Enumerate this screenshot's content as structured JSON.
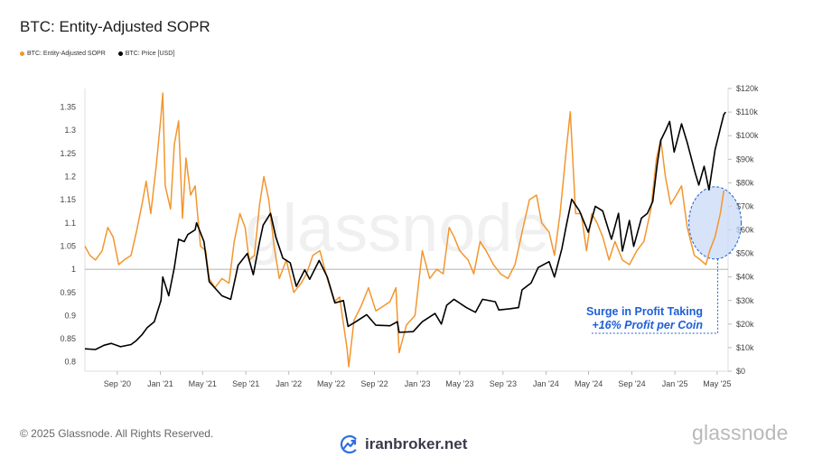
{
  "title": "BTC: Entity-Adjusted SOPR",
  "colors": {
    "sopr": "#f3962e",
    "price": "#000000",
    "annotation": "#1d5fd6",
    "highlight_fill": "#c9d9f5"
  },
  "footer": {
    "copyright": "© 2025 Glassnode. All Rights Reserved.",
    "brand": "glassnode",
    "logo_text": "iranbroker.net",
    "logo_icon": "trend-arrow-icon"
  },
  "watermark": "glassnode",
  "annotation": {
    "line1": "Surge in Profit Taking",
    "line2": "+16% Profit per Coin"
  },
  "chart_data": {
    "type": "line",
    "title": "BTC: Entity-Adjusted SOPR",
    "x_ticks": [
      "Sep '20",
      "Jan '21",
      "May '21",
      "Sep '21",
      "Jan '22",
      "May '22",
      "Sep '22",
      "Jan '23",
      "May '23",
      "Sep '23",
      "Jan '24",
      "May '24",
      "Sep '24",
      "Jan '25",
      "May '25"
    ],
    "x_range": [
      "2020-06-01",
      "2025-06-01"
    ],
    "y_left": {
      "ticks": [
        "0.8",
        "0.85",
        "0.9",
        "0.95",
        "1",
        "1.05",
        "1.1",
        "1.15",
        "1.2",
        "1.25",
        "1.3",
        "1.35"
      ],
      "range": [
        0.78,
        1.39
      ],
      "reference": 1
    },
    "y_right": {
      "ticks": [
        "$0",
        "$10k",
        "$20k",
        "$30k",
        "$40k",
        "$50k",
        "$60k",
        "$70k",
        "$80k",
        "$90k",
        "$100k",
        "$110k",
        "$120k"
      ],
      "range": [
        0,
        120000
      ]
    },
    "legend_position": "top-left",
    "series": [
      {
        "name": "BTC: Entity-Adjusted SOPR",
        "axis": "left",
        "points": [
          [
            "2020-06-01",
            1.05
          ],
          [
            "2020-06-15",
            1.03
          ],
          [
            "2020-07-01",
            1.02
          ],
          [
            "2020-07-20",
            1.04
          ],
          [
            "2020-08-05",
            1.09
          ],
          [
            "2020-08-20",
            1.07
          ],
          [
            "2020-09-05",
            1.01
          ],
          [
            "2020-09-20",
            1.02
          ],
          [
            "2020-10-10",
            1.03
          ],
          [
            "2020-10-25",
            1.08
          ],
          [
            "2020-11-10",
            1.14
          ],
          [
            "2020-11-22",
            1.19
          ],
          [
            "2020-12-05",
            1.12
          ],
          [
            "2020-12-20",
            1.22
          ],
          [
            "2021-01-03",
            1.33
          ],
          [
            "2021-01-08",
            1.38
          ],
          [
            "2021-01-15",
            1.18
          ],
          [
            "2021-01-30",
            1.13
          ],
          [
            "2021-02-10",
            1.27
          ],
          [
            "2021-02-22",
            1.32
          ],
          [
            "2021-03-05",
            1.11
          ],
          [
            "2021-03-15",
            1.24
          ],
          [
            "2021-03-28",
            1.16
          ],
          [
            "2021-04-10",
            1.18
          ],
          [
            "2021-04-25",
            1.05
          ],
          [
            "2021-05-10",
            1.04
          ],
          [
            "2021-05-20",
            0.98
          ],
          [
            "2021-06-05",
            0.96
          ],
          [
            "2021-06-25",
            0.98
          ],
          [
            "2021-07-15",
            0.97
          ],
          [
            "2021-07-30",
            1.06
          ],
          [
            "2021-08-15",
            1.12
          ],
          [
            "2021-08-30",
            1.09
          ],
          [
            "2021-09-10",
            1.02
          ],
          [
            "2021-09-25",
            1.03
          ],
          [
            "2021-10-10",
            1.14
          ],
          [
            "2021-10-22",
            1.2
          ],
          [
            "2021-11-05",
            1.15
          ],
          [
            "2021-11-20",
            1.05
          ],
          [
            "2021-12-05",
            0.98
          ],
          [
            "2021-12-25",
            1.02
          ],
          [
            "2022-01-15",
            0.95
          ],
          [
            "2022-02-05",
            0.97
          ],
          [
            "2022-02-20",
            0.99
          ],
          [
            "2022-03-10",
            1.03
          ],
          [
            "2022-03-30",
            1.04
          ],
          [
            "2022-04-20",
            0.98
          ],
          [
            "2022-05-10",
            0.93
          ],
          [
            "2022-05-25",
            0.94
          ],
          [
            "2022-06-15",
            0.83
          ],
          [
            "2022-06-20",
            0.79
          ],
          [
            "2022-07-05",
            0.89
          ],
          [
            "2022-07-25",
            0.92
          ],
          [
            "2022-08-15",
            0.96
          ],
          [
            "2022-09-05",
            0.91
          ],
          [
            "2022-09-25",
            0.92
          ],
          [
            "2022-10-15",
            0.93
          ],
          [
            "2022-11-01",
            0.96
          ],
          [
            "2022-11-10",
            0.82
          ],
          [
            "2022-12-01",
            0.88
          ],
          [
            "2022-12-25",
            0.9
          ],
          [
            "2023-01-15",
            1.04
          ],
          [
            "2023-02-05",
            0.98
          ],
          [
            "2023-02-25",
            1.0
          ],
          [
            "2023-03-15",
            0.99
          ],
          [
            "2023-04-01",
            1.09
          ],
          [
            "2023-04-15",
            1.07
          ],
          [
            "2023-05-01",
            1.04
          ],
          [
            "2023-05-25",
            1.02
          ],
          [
            "2023-06-10",
            0.99
          ],
          [
            "2023-06-28",
            1.06
          ],
          [
            "2023-07-15",
            1.04
          ],
          [
            "2023-08-05",
            1.01
          ],
          [
            "2023-08-25",
            0.99
          ],
          [
            "2023-09-15",
            0.98
          ],
          [
            "2023-10-05",
            1.01
          ],
          [
            "2023-10-28",
            1.09
          ],
          [
            "2023-11-15",
            1.15
          ],
          [
            "2023-12-05",
            1.16
          ],
          [
            "2023-12-20",
            1.1
          ],
          [
            "2024-01-10",
            1.08
          ],
          [
            "2024-01-25",
            1.03
          ],
          [
            "2024-02-10",
            1.12
          ],
          [
            "2024-02-28",
            1.26
          ],
          [
            "2024-03-10",
            1.34
          ],
          [
            "2024-03-25",
            1.12
          ],
          [
            "2024-04-10",
            1.12
          ],
          [
            "2024-04-25",
            1.04
          ],
          [
            "2024-05-10",
            1.12
          ],
          [
            "2024-05-25",
            1.1
          ],
          [
            "2024-06-10",
            1.07
          ],
          [
            "2024-06-28",
            1.02
          ],
          [
            "2024-07-15",
            1.06
          ],
          [
            "2024-08-05",
            1.02
          ],
          [
            "2024-08-25",
            1.01
          ],
          [
            "2024-09-15",
            1.04
          ],
          [
            "2024-10-05",
            1.06
          ],
          [
            "2024-10-25",
            1.13
          ],
          [
            "2024-11-10",
            1.24
          ],
          [
            "2024-11-22",
            1.28
          ],
          [
            "2024-12-05",
            1.2
          ],
          [
            "2024-12-20",
            1.14
          ],
          [
            "2025-01-05",
            1.16
          ],
          [
            "2025-01-20",
            1.18
          ],
          [
            "2025-02-05",
            1.09
          ],
          [
            "2025-02-25",
            1.03
          ],
          [
            "2025-03-15",
            1.02
          ],
          [
            "2025-03-30",
            1.01
          ],
          [
            "2025-04-10",
            1.04
          ],
          [
            "2025-04-25",
            1.07
          ],
          [
            "2025-05-10",
            1.12
          ],
          [
            "2025-05-20",
            1.17
          ]
        ]
      },
      {
        "name": "BTC: Price [USD]",
        "axis": "right",
        "points": [
          [
            "2020-06-01",
            9500
          ],
          [
            "2020-07-01",
            9200
          ],
          [
            "2020-07-25",
            11000
          ],
          [
            "2020-08-15",
            11800
          ],
          [
            "2020-09-10",
            10400
          ],
          [
            "2020-10-10",
            11300
          ],
          [
            "2020-10-25",
            13000
          ],
          [
            "2020-11-10",
            15500
          ],
          [
            "2020-11-25",
            18500
          ],
          [
            "2020-12-15",
            21000
          ],
          [
            "2021-01-03",
            30000
          ],
          [
            "2021-01-08",
            40000
          ],
          [
            "2021-01-25",
            32000
          ],
          [
            "2021-02-10",
            44000
          ],
          [
            "2021-02-22",
            56000
          ],
          [
            "2021-03-10",
            55000
          ],
          [
            "2021-03-20",
            58000
          ],
          [
            "2021-04-10",
            60000
          ],
          [
            "2021-04-14",
            63000
          ],
          [
            "2021-05-05",
            55000
          ],
          [
            "2021-05-20",
            38000
          ],
          [
            "2021-06-01",
            36000
          ],
          [
            "2021-06-25",
            32000
          ],
          [
            "2021-07-20",
            30500
          ],
          [
            "2021-08-10",
            45000
          ],
          [
            "2021-09-05",
            50000
          ],
          [
            "2021-09-22",
            41000
          ],
          [
            "2021-10-10",
            55000
          ],
          [
            "2021-10-20",
            62000
          ],
          [
            "2021-11-10",
            67000
          ],
          [
            "2021-11-25",
            57000
          ],
          [
            "2021-12-15",
            48000
          ],
          [
            "2022-01-05",
            46000
          ],
          [
            "2022-01-22",
            36000
          ],
          [
            "2022-02-15",
            43000
          ],
          [
            "2022-03-01",
            39000
          ],
          [
            "2022-03-28",
            47000
          ],
          [
            "2022-04-20",
            40000
          ],
          [
            "2022-05-12",
            29000
          ],
          [
            "2022-06-05",
            30000
          ],
          [
            "2022-06-18",
            19000
          ],
          [
            "2022-07-10",
            21000
          ],
          [
            "2022-08-10",
            24000
          ],
          [
            "2022-09-05",
            19500
          ],
          [
            "2022-10-15",
            19300
          ],
          [
            "2022-11-05",
            21000
          ],
          [
            "2022-11-10",
            16500
          ],
          [
            "2022-12-20",
            16800
          ],
          [
            "2023-01-15",
            21000
          ],
          [
            "2023-02-20",
            24500
          ],
          [
            "2023-03-10",
            20000
          ],
          [
            "2023-03-25",
            28000
          ],
          [
            "2023-04-15",
            30500
          ],
          [
            "2023-05-20",
            27000
          ],
          [
            "2023-06-15",
            25000
          ],
          [
            "2023-07-05",
            30500
          ],
          [
            "2023-08-10",
            29500
          ],
          [
            "2023-08-20",
            26000
          ],
          [
            "2023-09-20",
            26500
          ],
          [
            "2023-10-15",
            27000
          ],
          [
            "2023-10-25",
            34500
          ],
          [
            "2023-11-20",
            37500
          ],
          [
            "2023-12-10",
            44000
          ],
          [
            "2024-01-10",
            46500
          ],
          [
            "2024-01-25",
            40000
          ],
          [
            "2024-02-15",
            52000
          ],
          [
            "2024-02-28",
            62000
          ],
          [
            "2024-03-14",
            73000
          ],
          [
            "2024-04-05",
            68000
          ],
          [
            "2024-04-30",
            59000
          ],
          [
            "2024-05-20",
            70000
          ],
          [
            "2024-06-10",
            68000
          ],
          [
            "2024-07-05",
            56000
          ],
          [
            "2024-07-25",
            67000
          ],
          [
            "2024-08-05",
            51000
          ],
          [
            "2024-08-25",
            64000
          ],
          [
            "2024-09-06",
            53000
          ],
          [
            "2024-09-28",
            65000
          ],
          [
            "2024-10-15",
            67000
          ],
          [
            "2024-10-30",
            72000
          ],
          [
            "2024-11-12",
            88000
          ],
          [
            "2024-11-22",
            98000
          ],
          [
            "2024-12-05",
            102000
          ],
          [
            "2024-12-17",
            106000
          ],
          [
            "2024-12-30",
            93000
          ],
          [
            "2025-01-20",
            105000
          ],
          [
            "2025-02-05",
            97000
          ],
          [
            "2025-02-28",
            84000
          ],
          [
            "2025-03-10",
            79000
          ],
          [
            "2025-03-25",
            87000
          ],
          [
            "2025-04-08",
            77000
          ],
          [
            "2025-04-25",
            94000
          ],
          [
            "2025-05-10",
            103000
          ],
          [
            "2025-05-20",
            109000
          ],
          [
            "2025-05-25",
            110000
          ]
        ]
      }
    ]
  }
}
